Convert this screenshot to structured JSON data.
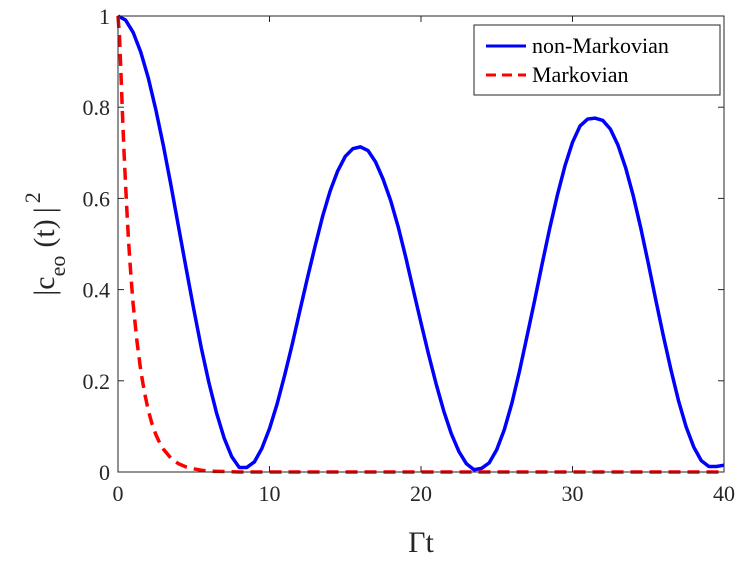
{
  "chart_data": {
    "type": "line",
    "xlabel": "Γt",
    "ylabel": {
      "main": "|c",
      "subscript": "eo",
      "tail": "(t)",
      "close": "|",
      "superscript": "2"
    },
    "xlim": [
      0,
      40
    ],
    "ylim": [
      0,
      1
    ],
    "xticks": [
      0,
      10,
      20,
      30,
      40
    ],
    "yticks": [
      0,
      0.2,
      0.4,
      0.6,
      0.8,
      1
    ],
    "xtick_labels": [
      "0",
      "10",
      "20",
      "30",
      "40"
    ],
    "ytick_labels": [
      "0",
      "0.2",
      "0.4",
      "0.6",
      "0.8",
      "1"
    ],
    "grid": false,
    "legend": {
      "position": "top-right"
    },
    "series": [
      {
        "name": "non-Markovian",
        "color": "#0000ff",
        "style": "solid",
        "x": [
          0,
          0.5,
          1,
          1.5,
          2,
          2.5,
          3,
          3.5,
          4,
          4.5,
          5,
          5.5,
          6,
          6.5,
          7,
          7.5,
          8,
          8.5,
          9,
          9.5,
          10,
          10.5,
          11,
          11.5,
          12,
          12.5,
          13,
          13.5,
          14,
          14.5,
          15,
          15.5,
          16,
          16.5,
          17,
          17.5,
          18,
          18.5,
          19,
          19.5,
          20,
          20.5,
          21,
          21.5,
          22,
          22.5,
          23,
          23.5,
          24,
          24.5,
          25,
          25.5,
          26,
          26.5,
          27,
          27.5,
          28,
          28.5,
          29,
          29.5,
          30,
          30.5,
          31,
          31.5,
          32,
          32.5,
          33,
          33.5,
          34,
          34.5,
          35,
          35.5,
          36,
          36.5,
          37,
          37.5,
          38,
          38.5,
          39,
          39.5,
          40
        ],
        "y": [
          1,
          0.991,
          0.964,
          0.921,
          0.864,
          0.794,
          0.715,
          0.628,
          0.537,
          0.446,
          0.357,
          0.272,
          0.196,
          0.13,
          0.075,
          0.034,
          0.01,
          0.01,
          0.022,
          0.052,
          0.095,
          0.149,
          0.212,
          0.28,
          0.353,
          0.425,
          0.494,
          0.56,
          0.616,
          0.66,
          0.692,
          0.709,
          0.713,
          0.705,
          0.68,
          0.642,
          0.595,
          0.537,
          0.47,
          0.398,
          0.327,
          0.258,
          0.193,
          0.134,
          0.084,
          0.045,
          0.018,
          0.005,
          0.008,
          0.02,
          0.049,
          0.093,
          0.151,
          0.221,
          0.298,
          0.376,
          0.457,
          0.535,
          0.607,
          0.671,
          0.723,
          0.759,
          0.774,
          0.776,
          0.771,
          0.752,
          0.717,
          0.668,
          0.607,
          0.536,
          0.458,
          0.377,
          0.298,
          0.224,
          0.156,
          0.099,
          0.055,
          0.025,
          0.012,
          0.012,
          0.015
        ]
      },
      {
        "name": "Markovian",
        "color": "#ff0000",
        "style": "dashed",
        "x": [
          0,
          0.1,
          0.2,
          0.3,
          0.4,
          0.5,
          0.6,
          0.7,
          0.8,
          0.9,
          1,
          1.25,
          1.5,
          1.75,
          2,
          2.25,
          2.5,
          2.75,
          3,
          3.5,
          4,
          4.5,
          5,
          5.5,
          6,
          7,
          8,
          10,
          15,
          20,
          25,
          30,
          35,
          40
        ],
        "y": [
          1,
          0.955,
          0.87,
          0.78,
          0.7,
          0.63,
          0.565,
          0.505,
          0.455,
          0.41,
          0.368,
          0.287,
          0.223,
          0.174,
          0.135,
          0.105,
          0.082,
          0.064,
          0.05,
          0.03,
          0.018,
          0.011,
          0.007,
          0.004,
          0.002,
          0.001,
          0,
          0,
          0,
          0,
          0,
          0,
          0,
          0
        ]
      }
    ]
  }
}
